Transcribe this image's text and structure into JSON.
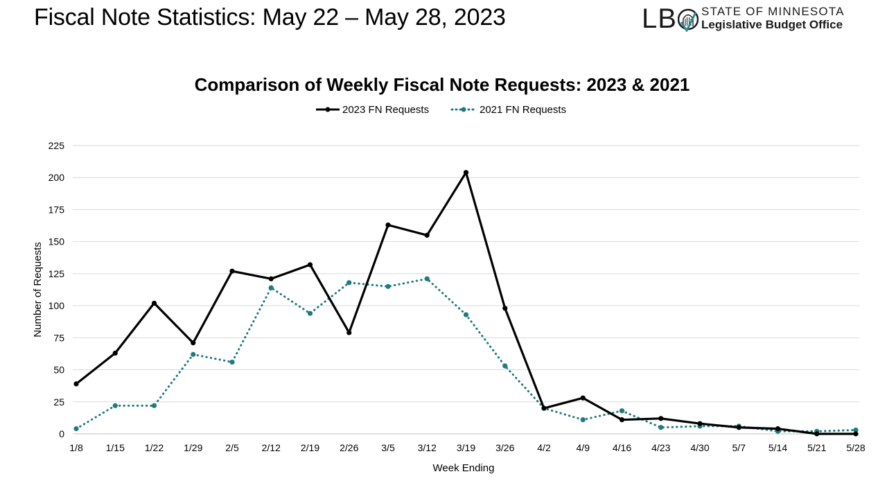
{
  "slide": {
    "title": "Fiscal Note Statistics: May 22 – May 28, 2023"
  },
  "logo": {
    "abbr": "LBO",
    "line1": "STATE OF MINNESOTA",
    "line2": "Legislative Budget Office"
  },
  "chart_data": {
    "type": "line",
    "title": "Comparison of Weekly Fiscal Note Requests: 2023 & 2021",
    "xlabel": "Week Ending",
    "ylabel": "Number of Requests",
    "categories": [
      "1/8",
      "1/15",
      "1/22",
      "1/29",
      "2/5",
      "2/12",
      "2/19",
      "2/26",
      "3/5",
      "3/12",
      "3/19",
      "3/26",
      "4/2",
      "4/9",
      "4/16",
      "4/23",
      "4/30",
      "5/7",
      "5/14",
      "5/21",
      "5/28"
    ],
    "yticks": [
      0,
      25,
      50,
      75,
      100,
      125,
      150,
      175,
      200,
      225
    ],
    "ylim": [
      0,
      225
    ],
    "grid": true,
    "legend_position": "top",
    "series": [
      {
        "name": "2023 FN Requests",
        "color": "#000000",
        "style": "solid",
        "values": [
          39,
          63,
          102,
          71,
          127,
          121,
          132,
          79,
          163,
          155,
          204,
          98,
          20,
          28,
          11,
          12,
          8,
          5,
          4,
          0,
          0
        ]
      },
      {
        "name": "2021 FN Requests",
        "color": "#1f7a80",
        "style": "dotted",
        "values": [
          4,
          22,
          22,
          62,
          56,
          114,
          94,
          118,
          115,
          121,
          93,
          53,
          20,
          11,
          18,
          5,
          6,
          6,
          2,
          2,
          3
        ]
      }
    ]
  }
}
